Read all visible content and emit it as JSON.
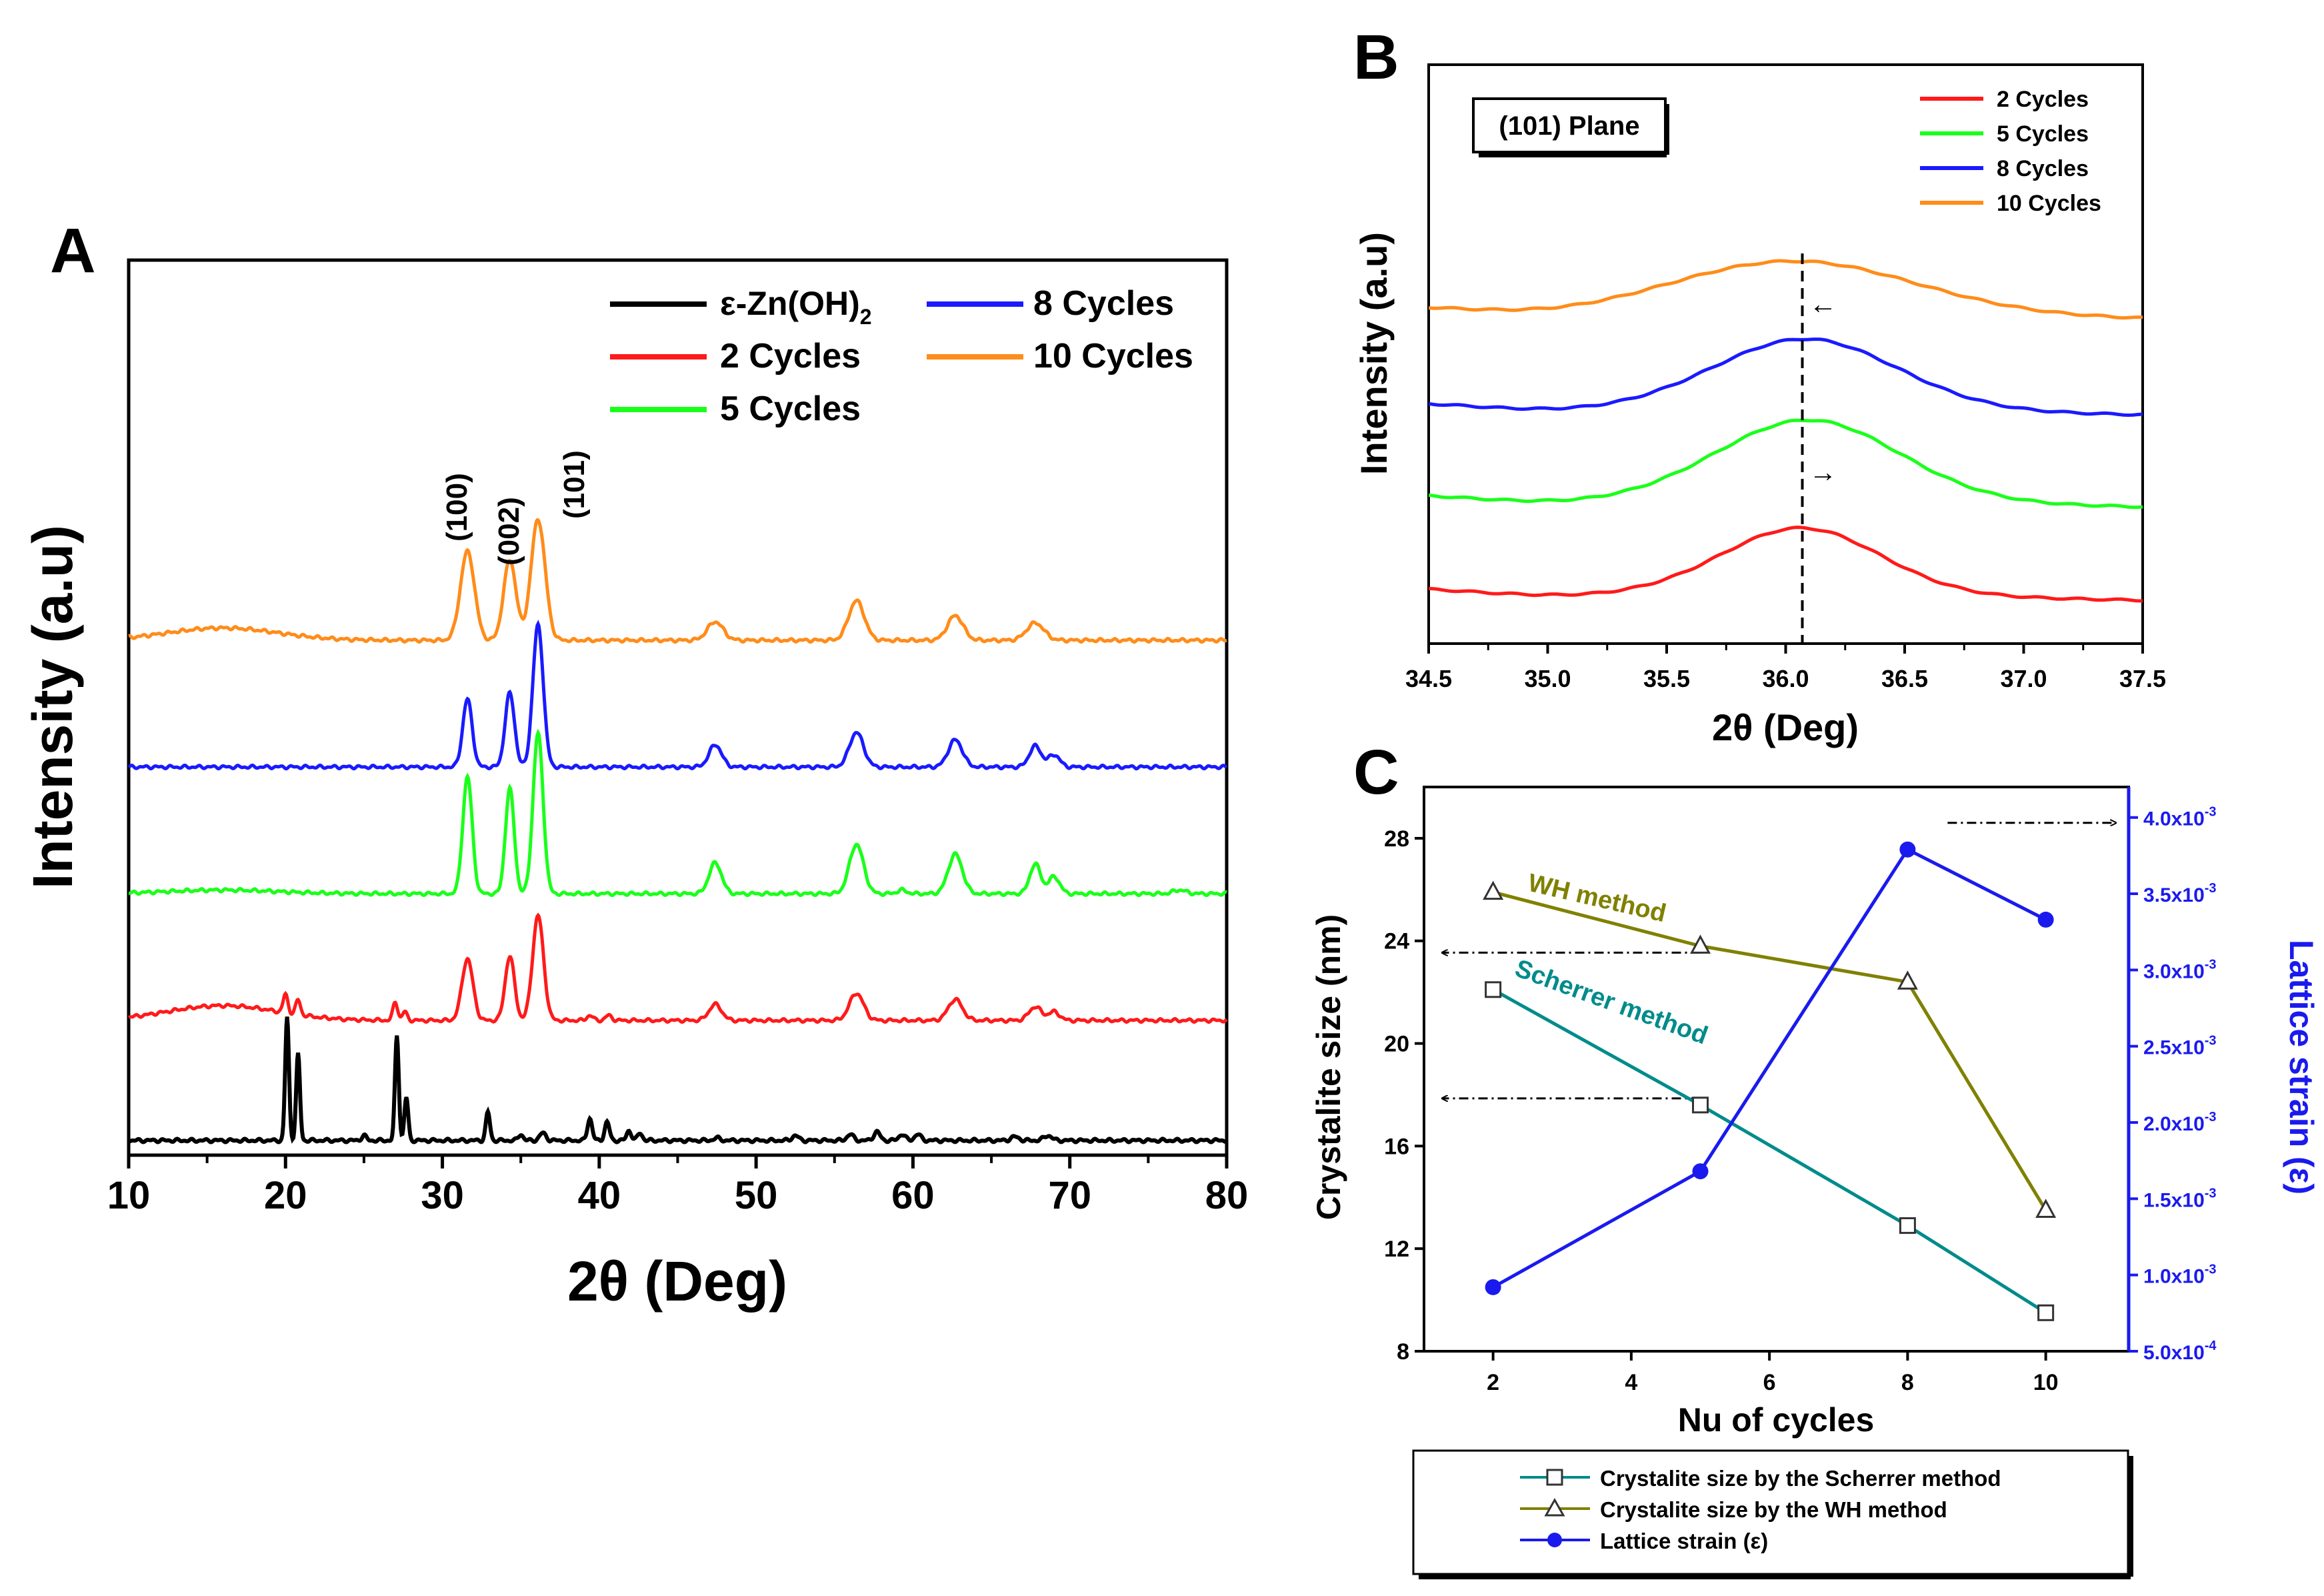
{
  "panel_labels": {
    "a": "A",
    "b": "B",
    "c": "C"
  },
  "chart_data": [
    {
      "panel": "A",
      "type": "line",
      "title": "",
      "xlabel": "2θ (Deg)",
      "ylabel": "Intensity (a.u)",
      "xlim": [
        10,
        80
      ],
      "xticks": [
        "10",
        "20",
        "30",
        "40",
        "50",
        "60",
        "70",
        "80"
      ],
      "legend": [
        {
          "name": "ε-Zn(OH)",
          "sub": "2",
          "color": "#000000"
        },
        {
          "name": "2 Cycles",
          "color": "#ff1a1a"
        },
        {
          "name": "5 Cycles",
          "color": "#1aff1a"
        },
        {
          "name": "8 Cycles",
          "color": "#1a1aff"
        },
        {
          "name": "10 Cycles",
          "color": "#ff8c1a"
        }
      ],
      "peak_labels": [
        "(100)",
        "(002)",
        "(101)"
      ],
      "series": [
        {
          "name": "ε-Zn(OH)2",
          "color": "#000000",
          "baseline": 0.0,
          "bump": 0.0,
          "peaks": [
            [
              20.1,
              1.0,
              0.12
            ],
            [
              20.8,
              0.7,
              0.12
            ],
            [
              25.0,
              0.04,
              0.15
            ],
            [
              27.1,
              0.85,
              0.12
            ],
            [
              27.7,
              0.35,
              0.12
            ],
            [
              32.9,
              0.23,
              0.13
            ],
            [
              35.0,
              0.05,
              0.15
            ],
            [
              36.4,
              0.06,
              0.2
            ],
            [
              39.4,
              0.18,
              0.15
            ],
            [
              40.5,
              0.15,
              0.15
            ],
            [
              41.9,
              0.08,
              0.15
            ],
            [
              42.6,
              0.06,
              0.15
            ],
            [
              47.5,
              0.02,
              0.2
            ],
            [
              52.5,
              0.04,
              0.2
            ],
            [
              56.0,
              0.05,
              0.2
            ],
            [
              57.7,
              0.07,
              0.2
            ],
            [
              59.3,
              0.05,
              0.2
            ],
            [
              60.3,
              0.05,
              0.2
            ],
            [
              66.5,
              0.03,
              0.25
            ],
            [
              68.6,
              0.04,
              0.25
            ]
          ]
        },
        {
          "name": "2 Cycles",
          "color": "#ff1a1a",
          "baseline": 1.0,
          "bump": 0.12,
          "peaks": [
            [
              20.0,
              0.15,
              0.15
            ],
            [
              20.8,
              0.12,
              0.15
            ],
            [
              27.0,
              0.15,
              0.15
            ],
            [
              27.6,
              0.07,
              0.15
            ],
            [
              31.6,
              0.5,
              0.35
            ],
            [
              34.3,
              0.52,
              0.3
            ],
            [
              36.1,
              0.85,
              0.35
            ],
            [
              39.4,
              0.04,
              0.2
            ],
            [
              40.6,
              0.04,
              0.2
            ],
            [
              47.4,
              0.13,
              0.4
            ],
            [
              56.4,
              0.22,
              0.45
            ],
            [
              62.7,
              0.17,
              0.45
            ],
            [
              67.8,
              0.11,
              0.4
            ],
            [
              69.0,
              0.07,
              0.35
            ]
          ]
        },
        {
          "name": "5 Cycles",
          "color": "#1aff1a",
          "baseline": 2.0,
          "bump": 0.03,
          "peaks": [
            [
              31.6,
              0.95,
              0.3
            ],
            [
              34.3,
              0.85,
              0.28
            ],
            [
              36.1,
              1.3,
              0.32
            ],
            [
              47.4,
              0.25,
              0.4
            ],
            [
              56.4,
              0.4,
              0.45
            ],
            [
              59.3,
              0.03,
              0.3
            ],
            [
              62.7,
              0.32,
              0.45
            ],
            [
              67.8,
              0.24,
              0.35
            ],
            [
              69.0,
              0.14,
              0.35
            ],
            [
              77.0,
              0.03,
              0.4
            ]
          ]
        },
        {
          "name": "8 Cycles",
          "color": "#1a1aff",
          "baseline": 3.0,
          "bump": 0.0,
          "peaks": [
            [
              31.6,
              0.55,
              0.3
            ],
            [
              34.3,
              0.6,
              0.3
            ],
            [
              36.1,
              1.15,
              0.33
            ],
            [
              47.4,
              0.18,
              0.4
            ],
            [
              56.4,
              0.28,
              0.45
            ],
            [
              62.7,
              0.22,
              0.45
            ],
            [
              67.8,
              0.17,
              0.38
            ],
            [
              69.0,
              0.1,
              0.35
            ]
          ]
        },
        {
          "name": "10 Cycles",
          "color": "#ff8c1a",
          "baseline": 4.0,
          "bump": 0.1,
          "peaks": [
            [
              31.6,
              0.72,
              0.45
            ],
            [
              34.3,
              0.65,
              0.4
            ],
            [
              36.1,
              0.98,
              0.45
            ],
            [
              47.4,
              0.15,
              0.5
            ],
            [
              56.4,
              0.32,
              0.5
            ],
            [
              62.7,
              0.2,
              0.5
            ],
            [
              67.8,
              0.14,
              0.55
            ]
          ]
        }
      ]
    },
    {
      "panel": "B",
      "type": "line",
      "title": "",
      "annotation": "(101) Plane",
      "xlabel": "2θ (Deg)",
      "ylabel": "Intensity (a.u)",
      "xlim": [
        34.5,
        37.5
      ],
      "xticks": [
        "34.5",
        "35.0",
        "35.5",
        "36.0",
        "36.5",
        "37.0",
        "37.5"
      ],
      "peak_position": 36.07,
      "shift_arrows": [
        "←",
        "→"
      ],
      "legend": [
        {
          "name": "2 Cycles",
          "color": "#ff1a1a"
        },
        {
          "name": "5 Cycles",
          "color": "#1aff1a"
        },
        {
          "name": "8 Cycles",
          "color": "#1a1aff"
        },
        {
          "name": "10 Cycles",
          "color": "#ff8c1a"
        }
      ],
      "series": [
        {
          "name": "2 Cycles",
          "color": "#ff1a1a",
          "baseline": 0.0,
          "center": 36.07,
          "height": 0.9,
          "width": 0.33
        },
        {
          "name": "5 Cycles",
          "color": "#1aff1a",
          "baseline": 1.0,
          "center": 36.1,
          "height": 1.1,
          "width": 0.38
        },
        {
          "name": "8 Cycles",
          "color": "#1a1aff",
          "baseline": 2.0,
          "center": 36.09,
          "height": 0.95,
          "width": 0.38
        },
        {
          "name": "10 Cycles",
          "color": "#ff8c1a",
          "baseline": 3.0,
          "center": 36.05,
          "height": 0.7,
          "width": 0.5
        }
      ]
    },
    {
      "panel": "C",
      "type": "line",
      "title": "",
      "xlabel": "Nu of cycles",
      "ylabel": "Crystalite size (nm)",
      "y2label": "Lattice strain (ε)",
      "xlim": [
        1,
        11.2
      ],
      "ylim": [
        8,
        30
      ],
      "y2lim": [
        0.0005,
        0.0042
      ],
      "xticks": [
        2,
        4,
        6,
        8,
        10
      ],
      "yticks": [
        8,
        12,
        16,
        20,
        24,
        28
      ],
      "y2ticks": [
        {
          "value": 0.0005,
          "mantissa": "5.0x10",
          "exp": "-4"
        },
        {
          "value": 0.001,
          "mantissa": "1.0x10",
          "exp": "-3"
        },
        {
          "value": 0.0015,
          "mantissa": "1.5x10",
          "exp": "-3"
        },
        {
          "value": 0.002,
          "mantissa": "2.0x10",
          "exp": "-3"
        },
        {
          "value": 0.0025,
          "mantissa": "2.5x10",
          "exp": "-3"
        },
        {
          "value": 0.003,
          "mantissa": "3.0x10",
          "exp": "-3"
        },
        {
          "value": 0.0035,
          "mantissa": "3.5x10",
          "exp": "-3"
        },
        {
          "value": 0.004,
          "mantissa": "4.0x10",
          "exp": "-3"
        }
      ],
      "series": [
        {
          "name": "Crystalite size by the Scherrer method",
          "label": "Scherrer method",
          "color": "#008b8b",
          "marker": "square",
          "axis": "left",
          "x": [
            2,
            5,
            8,
            10
          ],
          "y": [
            22.1,
            17.6,
            12.9,
            9.5
          ]
        },
        {
          "name": "Crystalite size by the WH method",
          "label": "WH method",
          "color": "#808000",
          "marker": "triangle",
          "axis": "left",
          "x": [
            2,
            5,
            8,
            10
          ],
          "y": [
            25.9,
            23.8,
            22.4,
            13.5
          ]
        },
        {
          "name": "Lattice strain (ε)",
          "color": "#1a1aee",
          "marker": "circle",
          "axis": "right",
          "x": [
            2,
            5,
            8,
            10
          ],
          "y": [
            0.00092,
            0.00168,
            0.00379,
            0.00333
          ]
        }
      ]
    }
  ]
}
